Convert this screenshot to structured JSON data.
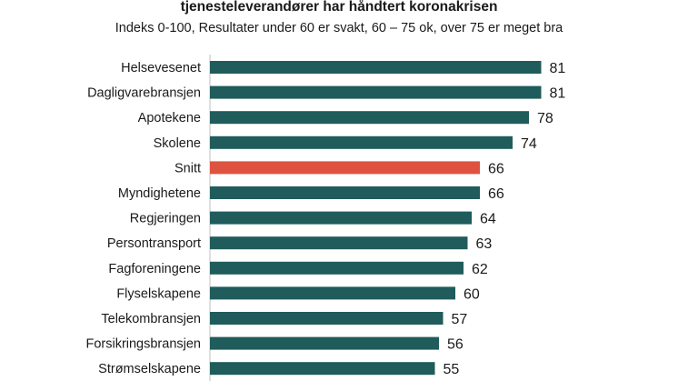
{
  "chart_data": {
    "type": "bar",
    "orientation": "horizontal",
    "title": "tjenesteleverandører har håndtert koronakrisen",
    "subtitle": "Indeks 0-100, Resultater under 60 er svakt, 60 – 75 ok, over 75 er meget bra",
    "categories": [
      "Helsevesenet",
      "Dagligvarebransjen",
      "Apotekene",
      "Skolene",
      "Snitt",
      "Myndighetene",
      "Regjeringen",
      "Persontransport",
      "Fagforeningene",
      "Flyselskapene",
      "Telekombransjen",
      "Forsikringsbransjen",
      "Strømselskapene"
    ],
    "values": [
      81,
      81,
      78,
      74,
      66,
      66,
      64,
      63,
      62,
      60,
      57,
      56,
      55
    ],
    "xlim": [
      0,
      100
    ],
    "grid": false,
    "colors": {
      "default": "#1f5c5b",
      "highlight": "#dd5340",
      "highlight_category": "Snitt"
    }
  }
}
